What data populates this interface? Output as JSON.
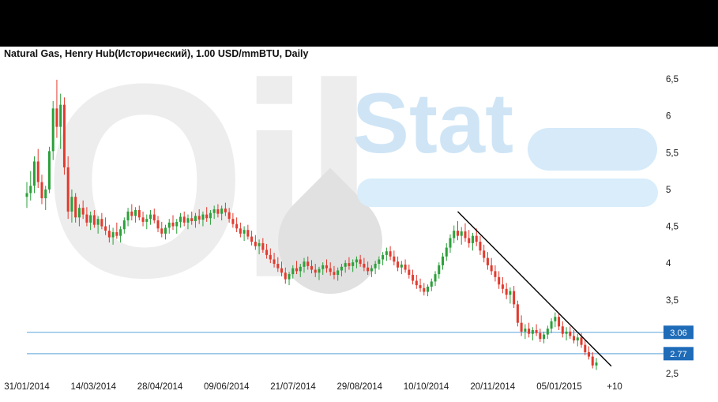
{
  "header": {
    "title": "Natural Gas, Henry Hub(Исторический), 1.00 USD/mmBTU, Daily"
  },
  "watermark": {
    "oil": "Oil",
    "stat": "Stat"
  },
  "chart_data": {
    "type": "candlestick",
    "title": "Natural Gas, Henry Hub(Исторический), 1.00 USD/mmBTU, Daily",
    "ylim": [
      2.5,
      6.5
    ],
    "grid": false,
    "yticks": [
      {
        "value": 6.5,
        "label": "6,5"
      },
      {
        "value": 6.0,
        "label": "6"
      },
      {
        "value": 5.5,
        "label": "5,5"
      },
      {
        "value": 5.0,
        "label": "5"
      },
      {
        "value": 4.5,
        "label": "4,5"
      },
      {
        "value": 4.0,
        "label": "4"
      },
      {
        "value": 3.5,
        "label": "3,5"
      },
      {
        "value": 2.5,
        "label": "2,5"
      }
    ],
    "xticklabels": [
      "31/01/2014",
      "14/03/2014",
      "28/04/2014",
      "09/06/2014",
      "21/07/2014",
      "29/08/2014",
      "10/10/2014",
      "20/11/2014",
      "05/01/2015",
      "+10"
    ],
    "support_levels": [
      {
        "price": 3.06,
        "label": "3.06"
      },
      {
        "price": 2.77,
        "label": "2.77"
      }
    ],
    "trendline": {
      "start_index": 115,
      "start_price": 4.7,
      "end_index": 156,
      "end_price": 2.6
    },
    "colors": {
      "up": "#2ba03a",
      "down": "#e23a2e",
      "support_line": "#5ba3d9",
      "support_label_bg": "#1e6bb8",
      "support_label_text": "#ffffff",
      "trendline": "#000000",
      "axis_text": "#1a1a1a"
    },
    "ohlc_columns": [
      "open",
      "high",
      "low",
      "close"
    ],
    "candles": [
      [
        4.9,
        5.1,
        4.75,
        4.95
      ],
      [
        4.95,
        5.25,
        4.85,
        5.05
      ],
      [
        5.05,
        5.45,
        4.95,
        5.38
      ],
      [
        5.38,
        5.55,
        5.02,
        5.1
      ],
      [
        5.1,
        5.2,
        4.8,
        4.88
      ],
      [
        4.88,
        5.05,
        4.72,
        5.0
      ],
      [
        5.0,
        5.58,
        4.95,
        5.52
      ],
      [
        5.52,
        6.2,
        5.4,
        6.1
      ],
      [
        6.1,
        6.49,
        5.7,
        5.85
      ],
      [
        5.85,
        6.3,
        5.55,
        6.15
      ],
      [
        6.15,
        6.25,
        5.2,
        5.3
      ],
      [
        5.3,
        5.45,
        4.6,
        4.7
      ],
      [
        4.7,
        5.0,
        4.55,
        4.9
      ],
      [
        4.9,
        4.95,
        4.55,
        4.62
      ],
      [
        4.62,
        4.8,
        4.5,
        4.75
      ],
      [
        4.75,
        4.85,
        4.6,
        4.66
      ],
      [
        4.66,
        4.76,
        4.5,
        4.55
      ],
      [
        4.55,
        4.7,
        4.45,
        4.65
      ],
      [
        4.65,
        4.72,
        4.48,
        4.52
      ],
      [
        4.52,
        4.64,
        4.4,
        4.6
      ],
      [
        4.6,
        4.68,
        4.46,
        4.5
      ],
      [
        4.5,
        4.62,
        4.38,
        4.44
      ],
      [
        4.44,
        4.52,
        4.28,
        4.35
      ],
      [
        4.35,
        4.48,
        4.25,
        4.42
      ],
      [
        4.42,
        4.55,
        4.33,
        4.37
      ],
      [
        4.37,
        4.5,
        4.28,
        4.46
      ],
      [
        4.46,
        4.62,
        4.4,
        4.58
      ],
      [
        4.58,
        4.75,
        4.5,
        4.7
      ],
      [
        4.7,
        4.8,
        4.58,
        4.64
      ],
      [
        4.64,
        4.76,
        4.55,
        4.72
      ],
      [
        4.72,
        4.78,
        4.58,
        4.62
      ],
      [
        4.62,
        4.7,
        4.5,
        4.56
      ],
      [
        4.56,
        4.66,
        4.46,
        4.6
      ],
      [
        4.6,
        4.72,
        4.52,
        4.66
      ],
      [
        4.66,
        4.74,
        4.54,
        4.58
      ],
      [
        4.58,
        4.64,
        4.42,
        4.47
      ],
      [
        4.47,
        4.56,
        4.35,
        4.4
      ],
      [
        4.4,
        4.52,
        4.32,
        4.48
      ],
      [
        4.48,
        4.6,
        4.4,
        4.55
      ],
      [
        4.55,
        4.65,
        4.45,
        4.5
      ],
      [
        4.5,
        4.6,
        4.4,
        4.56
      ],
      [
        4.56,
        4.68,
        4.48,
        4.63
      ],
      [
        4.63,
        4.7,
        4.5,
        4.55
      ],
      [
        4.55,
        4.66,
        4.46,
        4.61
      ],
      [
        4.61,
        4.7,
        4.52,
        4.57
      ],
      [
        4.57,
        4.68,
        4.48,
        4.64
      ],
      [
        4.64,
        4.73,
        4.53,
        4.59
      ],
      [
        4.59,
        4.7,
        4.5,
        4.66
      ],
      [
        4.66,
        4.76,
        4.56,
        4.61
      ],
      [
        4.61,
        4.72,
        4.52,
        4.68
      ],
      [
        4.68,
        4.78,
        4.6,
        4.73
      ],
      [
        4.73,
        4.8,
        4.62,
        4.67
      ],
      [
        4.67,
        4.78,
        4.58,
        4.74
      ],
      [
        4.74,
        4.82,
        4.64,
        4.69
      ],
      [
        4.69,
        4.75,
        4.55,
        4.6
      ],
      [
        4.6,
        4.68,
        4.48,
        4.53
      ],
      [
        4.53,
        4.62,
        4.42,
        4.47
      ],
      [
        4.47,
        4.55,
        4.35,
        4.4
      ],
      [
        4.4,
        4.5,
        4.3,
        4.45
      ],
      [
        4.45,
        4.52,
        4.32,
        4.36
      ],
      [
        4.36,
        4.44,
        4.24,
        4.29
      ],
      [
        4.29,
        4.38,
        4.18,
        4.23
      ],
      [
        4.23,
        4.32,
        4.12,
        4.27
      ],
      [
        4.27,
        4.34,
        4.14,
        4.18
      ],
      [
        4.18,
        4.26,
        4.06,
        4.11
      ],
      [
        4.11,
        4.2,
        4.0,
        4.05
      ],
      [
        4.05,
        4.14,
        3.94,
        3.99
      ],
      [
        3.99,
        4.08,
        3.88,
        3.93
      ],
      [
        3.93,
        4.02,
        3.82,
        3.87
      ],
      [
        3.87,
        3.94,
        3.72,
        3.78
      ],
      [
        3.78,
        3.88,
        3.7,
        3.85
      ],
      [
        3.85,
        3.97,
        3.79,
        3.93
      ],
      [
        3.93,
        4.03,
        3.85,
        3.89
      ],
      [
        3.89,
        3.99,
        3.81,
        3.95
      ],
      [
        3.95,
        4.07,
        3.87,
        4.02
      ],
      [
        4.02,
        4.09,
        3.91,
        3.96
      ],
      [
        3.96,
        4.04,
        3.86,
        3.91
      ],
      [
        3.91,
        3.99,
        3.81,
        3.87
      ],
      [
        3.87,
        3.95,
        3.77,
        3.92
      ],
      [
        3.92,
        4.01,
        3.84,
        3.97
      ],
      [
        3.97,
        4.05,
        3.87,
        3.93
      ],
      [
        3.93,
        4.01,
        3.83,
        3.88
      ],
      [
        3.88,
        3.96,
        3.78,
        3.84
      ],
      [
        3.84,
        3.94,
        3.76,
        3.9
      ],
      [
        3.9,
        3.99,
        3.82,
        3.95
      ],
      [
        3.95,
        4.04,
        3.87,
        4.0
      ],
      [
        4.0,
        4.08,
        3.91,
        3.96
      ],
      [
        3.96,
        4.05,
        3.88,
        4.01
      ],
      [
        4.01,
        4.09,
        3.93,
        4.05
      ],
      [
        4.05,
        4.11,
        3.95,
        3.99
      ],
      [
        3.99,
        4.07,
        3.89,
        3.94
      ],
      [
        3.94,
        4.02,
        3.84,
        3.89
      ],
      [
        3.89,
        3.97,
        3.81,
        3.93
      ],
      [
        3.93,
        4.03,
        3.85,
        3.99
      ],
      [
        3.99,
        4.09,
        3.91,
        4.05
      ],
      [
        4.05,
        4.15,
        3.97,
        4.11
      ],
      [
        4.11,
        4.21,
        4.03,
        4.16
      ],
      [
        4.16,
        4.23,
        4.04,
        4.09
      ],
      [
        4.09,
        4.17,
        3.97,
        4.02
      ],
      [
        4.02,
        4.09,
        3.89,
        3.94
      ],
      [
        3.94,
        4.03,
        3.85,
        3.98
      ],
      [
        3.98,
        4.05,
        3.87,
        3.91
      ],
      [
        3.91,
        3.98,
        3.79,
        3.84
      ],
      [
        3.84,
        3.91,
        3.71,
        3.76
      ],
      [
        3.76,
        3.84,
        3.65,
        3.7
      ],
      [
        3.7,
        3.79,
        3.61,
        3.66
      ],
      [
        3.66,
        3.73,
        3.56,
        3.61
      ],
      [
        3.61,
        3.71,
        3.55,
        3.68
      ],
      [
        3.68,
        3.79,
        3.62,
        3.75
      ],
      [
        3.75,
        3.89,
        3.69,
        3.85
      ],
      [
        3.85,
        4.01,
        3.79,
        3.97
      ],
      [
        3.97,
        4.14,
        3.91,
        4.09
      ],
      [
        4.09,
        4.27,
        4.03,
        4.21
      ],
      [
        4.21,
        4.39,
        4.14,
        4.34
      ],
      [
        4.34,
        4.51,
        4.27,
        4.44
      ],
      [
        4.44,
        4.57,
        4.31,
        4.37
      ],
      [
        4.37,
        4.49,
        4.25,
        4.43
      ],
      [
        4.43,
        4.54,
        4.29,
        4.34
      ],
      [
        4.34,
        4.45,
        4.21,
        4.27
      ],
      [
        4.27,
        4.41,
        4.17,
        4.37
      ],
      [
        4.37,
        4.47,
        4.23,
        4.29
      ],
      [
        4.29,
        4.37,
        4.11,
        4.17
      ],
      [
        4.17,
        4.25,
        4.01,
        4.07
      ],
      [
        4.07,
        4.15,
        3.91,
        3.97
      ],
      [
        3.97,
        4.07,
        3.84,
        3.89
      ],
      [
        3.89,
        3.97,
        3.75,
        3.81
      ],
      [
        3.81,
        3.89,
        3.65,
        3.71
      ],
      [
        3.71,
        3.81,
        3.59,
        3.65
      ],
      [
        3.65,
        3.73,
        3.51,
        3.57
      ],
      [
        3.57,
        3.67,
        3.45,
        3.62
      ],
      [
        3.62,
        3.69,
        3.39,
        3.44
      ],
      [
        3.44,
        3.49,
        3.14,
        3.19
      ],
      [
        3.19,
        3.29,
        3.01,
        3.07
      ],
      [
        3.07,
        3.17,
        2.97,
        3.11
      ],
      [
        3.11,
        3.19,
        2.99,
        3.04
      ],
      [
        3.04,
        3.13,
        2.95,
        3.09
      ],
      [
        3.09,
        3.17,
        3.01,
        3.05
      ],
      [
        3.05,
        3.11,
        2.93,
        2.97
      ],
      [
        2.97,
        3.07,
        2.91,
        3.03
      ],
      [
        3.03,
        3.15,
        2.97,
        3.11
      ],
      [
        3.11,
        3.25,
        3.05,
        3.21
      ],
      [
        3.21,
        3.33,
        3.13,
        3.27
      ],
      [
        3.27,
        3.31,
        3.09,
        3.14
      ],
      [
        3.14,
        3.21,
        2.99,
        3.04
      ],
      [
        3.04,
        3.13,
        2.95,
        3.07
      ],
      [
        3.07,
        3.14,
        2.97,
        3.01
      ],
      [
        3.01,
        3.09,
        2.91,
        2.95
      ],
      [
        2.95,
        3.04,
        2.87,
        2.99
      ],
      [
        2.99,
        3.05,
        2.85,
        2.89
      ],
      [
        2.89,
        2.95,
        2.75,
        2.79
      ],
      [
        2.79,
        2.87,
        2.69,
        2.73
      ],
      [
        2.73,
        2.79,
        2.57,
        2.61
      ],
      [
        2.61,
        2.71,
        2.55,
        2.65
      ]
    ]
  }
}
